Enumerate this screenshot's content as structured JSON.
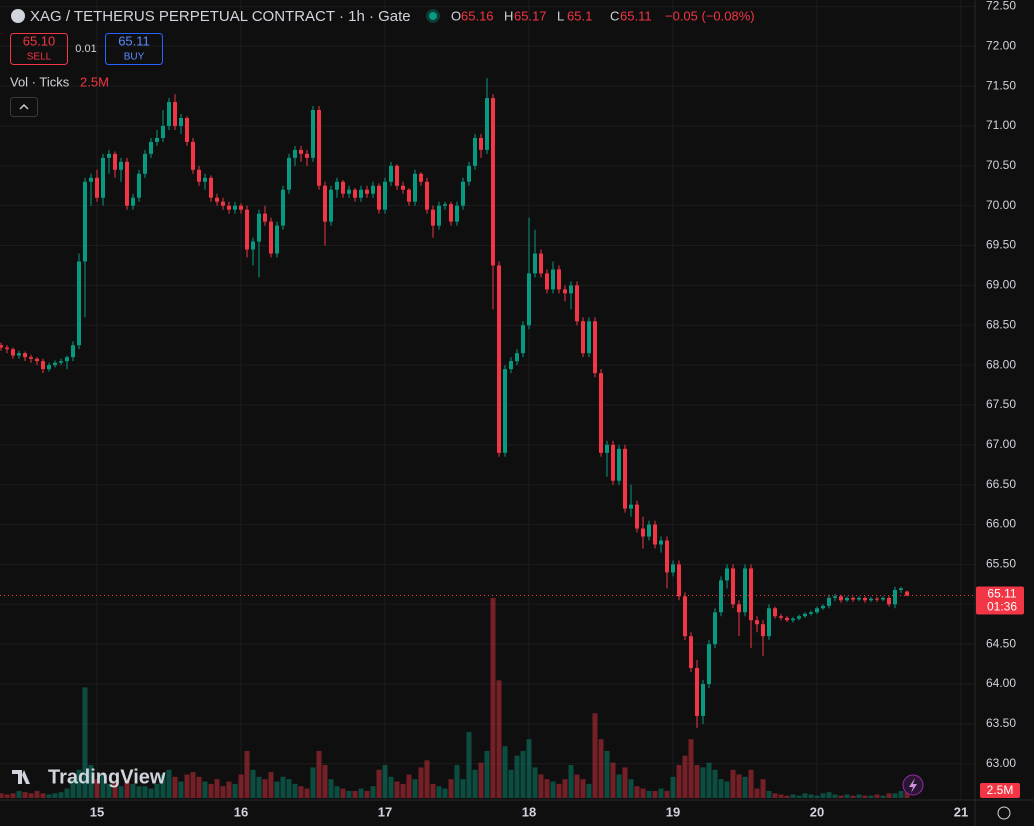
{
  "chart_data": {
    "type": "candlestick",
    "title": "XAG / TETHERUS PERPETUAL CONTRACT · 1h · Gate",
    "ohlc_keys": [
      "O",
      "H",
      "L",
      "C"
    ],
    "change_label": "−0.05 (−0.08%)",
    "sell_price": "65.10",
    "sell_label": "SELL",
    "spread": "0.01",
    "buy_price": "65.11",
    "buy_label": "BUY",
    "countdown": "01:36",
    "watermark": "TradingView",
    "up_color": "#089981",
    "down_color": "#f23645",
    "grid": true,
    "categories": [
      null,
      null,
      null,
      null,
      null,
      null,
      null,
      null,
      null,
      null,
      null,
      null,
      null,
      null,
      null,
      null,
      "15",
      null,
      null,
      null,
      null,
      null,
      null,
      null,
      null,
      null,
      null,
      null,
      null,
      null,
      null,
      null,
      null,
      null,
      null,
      null,
      null,
      null,
      null,
      null,
      "16",
      null,
      null,
      null,
      null,
      null,
      null,
      null,
      null,
      null,
      null,
      null,
      null,
      null,
      null,
      null,
      null,
      null,
      null,
      null,
      null,
      null,
      null,
      null,
      "17",
      null,
      null,
      null,
      null,
      null,
      null,
      null,
      null,
      null,
      null,
      null,
      null,
      null,
      null,
      null,
      null,
      null,
      null,
      null,
      null,
      null,
      null,
      null,
      "18",
      null,
      null,
      null,
      null,
      null,
      null,
      null,
      null,
      null,
      null,
      null,
      null,
      null,
      null,
      null,
      null,
      null,
      null,
      null,
      null,
      null,
      null,
      null,
      "19",
      null,
      null,
      null,
      null,
      null,
      null,
      null,
      null,
      null,
      null,
      null,
      null,
      null,
      null,
      null,
      null,
      null,
      null,
      null,
      null,
      null,
      null,
      null,
      "20",
      null,
      null,
      null,
      null,
      null,
      null,
      null,
      null,
      null,
      null,
      null,
      null,
      null,
      null,
      null,
      null,
      null,
      null,
      null,
      null,
      null,
      null,
      null,
      "21"
    ],
    "ohlc": [
      [
        68.25,
        68.28,
        68.18,
        68.22
      ],
      [
        68.22,
        68.25,
        68.15,
        68.2
      ],
      [
        68.2,
        68.22,
        68.08,
        68.12
      ],
      [
        68.12,
        68.18,
        68.08,
        68.15
      ],
      [
        68.15,
        68.17,
        68.05,
        68.1
      ],
      [
        68.1,
        68.13,
        68.03,
        68.08
      ],
      [
        68.08,
        68.1,
        68.0,
        68.05
      ],
      [
        68.05,
        68.08,
        67.9,
        67.95
      ],
      [
        67.95,
        68.03,
        67.92,
        68.0
      ],
      [
        68.0,
        68.06,
        67.97,
        68.03
      ],
      [
        68.03,
        68.08,
        68.0,
        68.05
      ],
      [
        68.05,
        68.12,
        67.95,
        68.1
      ],
      [
        68.1,
        68.3,
        68.05,
        68.25
      ],
      [
        68.25,
        69.4,
        68.2,
        69.3
      ],
      [
        69.3,
        70.35,
        68.6,
        70.3
      ],
      [
        70.3,
        70.4,
        70.0,
        70.35
      ],
      [
        70.35,
        70.45,
        70.05,
        70.1
      ],
      [
        70.1,
        70.65,
        70.0,
        70.6
      ],
      [
        70.6,
        70.7,
        70.4,
        70.65
      ],
      [
        70.65,
        70.68,
        70.35,
        70.45
      ],
      [
        70.45,
        70.6,
        70.3,
        70.55
      ],
      [
        70.55,
        70.6,
        69.95,
        70.0
      ],
      [
        70.0,
        70.15,
        69.95,
        70.1
      ],
      [
        70.1,
        70.45,
        70.05,
        70.4
      ],
      [
        70.4,
        70.7,
        70.35,
        70.65
      ],
      [
        70.65,
        70.85,
        70.6,
        70.8
      ],
      [
        70.8,
        70.95,
        70.75,
        70.85
      ],
      [
        70.85,
        71.2,
        70.8,
        71.0
      ],
      [
        71.0,
        71.35,
        70.95,
        71.3
      ],
      [
        71.3,
        71.4,
        70.95,
        71.0
      ],
      [
        71.0,
        71.15,
        70.9,
        71.1
      ],
      [
        71.1,
        71.12,
        70.75,
        70.8
      ],
      [
        70.8,
        70.85,
        70.4,
        70.45
      ],
      [
        70.45,
        70.5,
        70.25,
        70.3
      ],
      [
        70.3,
        70.4,
        70.2,
        70.35
      ],
      [
        70.35,
        70.38,
        70.05,
        70.1
      ],
      [
        70.1,
        70.15,
        70.0,
        70.05
      ],
      [
        70.05,
        70.1,
        69.95,
        70.0
      ],
      [
        70.0,
        70.05,
        69.9,
        69.95
      ],
      [
        69.95,
        70.05,
        69.9,
        70.0
      ],
      [
        70.0,
        70.03,
        69.9,
        69.95
      ],
      [
        69.95,
        70.0,
        69.35,
        69.45
      ],
      [
        69.45,
        69.6,
        69.25,
        69.55
      ],
      [
        69.55,
        69.95,
        69.1,
        69.9
      ],
      [
        69.9,
        70.0,
        69.75,
        69.8
      ],
      [
        69.8,
        69.85,
        69.35,
        69.4
      ],
      [
        69.4,
        69.8,
        69.35,
        69.75
      ],
      [
        69.75,
        70.25,
        69.7,
        70.2
      ],
      [
        70.2,
        70.65,
        70.15,
        70.6
      ],
      [
        70.6,
        70.75,
        70.5,
        70.7
      ],
      [
        70.7,
        70.75,
        70.55,
        70.65
      ],
      [
        70.65,
        70.7,
        70.5,
        70.6
      ],
      [
        70.6,
        71.25,
        70.55,
        71.2
      ],
      [
        71.2,
        71.25,
        70.2,
        70.25
      ],
      [
        70.25,
        70.3,
        69.5,
        69.8
      ],
      [
        69.8,
        70.25,
        69.75,
        70.2
      ],
      [
        70.2,
        70.35,
        70.1,
        70.3
      ],
      [
        70.3,
        70.32,
        70.1,
        70.15
      ],
      [
        70.15,
        70.25,
        70.1,
        70.2
      ],
      [
        70.2,
        70.22,
        70.05,
        70.1
      ],
      [
        70.1,
        70.25,
        70.05,
        70.2
      ],
      [
        70.2,
        70.25,
        70.1,
        70.15
      ],
      [
        70.15,
        70.3,
        70.1,
        70.25
      ],
      [
        70.25,
        70.28,
        69.9,
        69.95
      ],
      [
        69.95,
        70.35,
        69.9,
        70.3
      ],
      [
        70.3,
        70.55,
        70.25,
        70.5
      ],
      [
        70.5,
        70.52,
        70.2,
        70.25
      ],
      [
        70.25,
        70.3,
        70.15,
        70.2
      ],
      [
        70.2,
        70.22,
        70.0,
        70.05
      ],
      [
        70.05,
        70.45,
        70.0,
        70.4
      ],
      [
        70.4,
        70.42,
        70.25,
        70.3
      ],
      [
        70.3,
        70.35,
        69.9,
        69.95
      ],
      [
        69.95,
        70.0,
        69.6,
        69.75
      ],
      [
        69.75,
        70.05,
        69.7,
        70.0
      ],
      [
        70.0,
        70.05,
        69.95,
        70.02
      ],
      [
        70.02,
        70.05,
        69.75,
        69.8
      ],
      [
        69.8,
        70.05,
        69.75,
        70.0
      ],
      [
        70.0,
        70.35,
        69.95,
        70.3
      ],
      [
        70.3,
        70.55,
        70.25,
        70.5
      ],
      [
        70.5,
        70.9,
        70.45,
        70.85
      ],
      [
        70.85,
        70.9,
        70.6,
        70.7
      ],
      [
        70.7,
        71.6,
        70.65,
        71.35
      ],
      [
        71.35,
        71.4,
        68.7,
        69.25
      ],
      [
        69.25,
        69.3,
        66.85,
        66.9
      ],
      [
        66.9,
        68.0,
        66.85,
        67.95
      ],
      [
        67.95,
        68.1,
        67.9,
        68.05
      ],
      [
        68.05,
        68.2,
        68.0,
        68.15
      ],
      [
        68.15,
        68.55,
        68.1,
        68.5
      ],
      [
        68.5,
        69.85,
        68.45,
        69.15
      ],
      [
        69.15,
        69.7,
        69.1,
        69.4
      ],
      [
        69.4,
        69.45,
        69.1,
        69.15
      ],
      [
        69.15,
        69.2,
        68.9,
        68.95
      ],
      [
        68.95,
        69.3,
        68.9,
        69.2
      ],
      [
        69.2,
        69.25,
        68.9,
        68.95
      ],
      [
        68.95,
        69.0,
        68.8,
        68.9
      ],
      [
        68.9,
        69.05,
        68.7,
        69.0
      ],
      [
        69.0,
        69.05,
        68.5,
        68.55
      ],
      [
        68.55,
        68.6,
        68.1,
        68.15
      ],
      [
        68.15,
        68.6,
        68.1,
        68.55
      ],
      [
        68.55,
        68.6,
        67.85,
        67.9
      ],
      [
        67.9,
        67.95,
        66.85,
        66.9
      ],
      [
        66.9,
        67.05,
        66.6,
        67.0
      ],
      [
        67.0,
        67.05,
        66.5,
        66.55
      ],
      [
        66.55,
        67.0,
        66.5,
        66.95
      ],
      [
        66.95,
        67.0,
        66.15,
        66.2
      ],
      [
        66.2,
        66.5,
        66.1,
        66.25
      ],
      [
        66.25,
        66.3,
        65.9,
        65.95
      ],
      [
        65.95,
        66.1,
        65.7,
        65.85
      ],
      [
        65.85,
        66.05,
        65.8,
        66.0
      ],
      [
        66.0,
        66.05,
        65.7,
        65.75
      ],
      [
        65.75,
        65.85,
        65.65,
        65.8
      ],
      [
        65.8,
        65.85,
        65.2,
        65.4
      ],
      [
        65.4,
        65.55,
        65.35,
        65.5
      ],
      [
        65.5,
        65.55,
        65.05,
        65.1
      ],
      [
        65.1,
        65.15,
        64.55,
        64.6
      ],
      [
        64.6,
        64.65,
        64.15,
        64.2
      ],
      [
        64.2,
        64.3,
        63.45,
        63.6
      ],
      [
        63.6,
        64.05,
        63.5,
        64.0
      ],
      [
        64.0,
        64.55,
        63.95,
        64.5
      ],
      [
        64.5,
        64.95,
        64.45,
        64.9
      ],
      [
        64.9,
        65.35,
        64.85,
        65.3
      ],
      [
        65.3,
        65.5,
        65.2,
        65.45
      ],
      [
        65.45,
        65.5,
        64.95,
        65.0
      ],
      [
        65.0,
        65.05,
        64.6,
        64.9
      ],
      [
        64.9,
        65.5,
        64.85,
        65.45
      ],
      [
        65.45,
        65.5,
        64.45,
        64.8
      ],
      [
        64.8,
        64.85,
        64.65,
        64.75
      ],
      [
        64.75,
        64.8,
        64.35,
        64.6
      ],
      [
        64.6,
        65.0,
        64.55,
        64.95
      ],
      [
        64.95,
        64.97,
        64.82,
        64.85
      ],
      [
        64.85,
        64.88,
        64.8,
        64.83
      ],
      [
        64.83,
        64.85,
        64.78,
        64.8
      ],
      [
        64.8,
        64.84,
        64.77,
        64.82
      ],
      [
        64.82,
        64.87,
        64.8,
        64.85
      ],
      [
        64.85,
        64.9,
        64.83,
        64.88
      ],
      [
        64.88,
        64.92,
        64.86,
        64.9
      ],
      [
        64.9,
        64.97,
        64.88,
        64.95
      ],
      [
        64.95,
        65.0,
        64.93,
        64.98
      ],
      [
        64.98,
        65.12,
        64.95,
        65.08
      ],
      [
        65.08,
        65.13,
        65.04,
        65.1
      ],
      [
        65.1,
        65.12,
        65.02,
        65.05
      ],
      [
        65.05,
        65.1,
        65.03,
        65.08
      ],
      [
        65.08,
        65.1,
        65.03,
        65.06
      ],
      [
        65.06,
        65.1,
        65.04,
        65.08
      ],
      [
        65.08,
        65.1,
        65.02,
        65.05
      ],
      [
        65.05,
        65.09,
        65.03,
        65.07
      ],
      [
        65.07,
        65.09,
        65.03,
        65.06
      ],
      [
        65.06,
        65.1,
        65.04,
        65.08
      ],
      [
        65.08,
        65.1,
        64.97,
        65.0
      ],
      [
        65.0,
        65.22,
        64.95,
        65.18
      ],
      [
        65.18,
        65.22,
        65.14,
        65.2
      ],
      [
        65.16,
        65.17,
        65.1,
        65.11
      ],
      null,
      null,
      null,
      null,
      null,
      null,
      null,
      null,
      null
    ],
    "volume": {
      "name": "Vol · Ticks",
      "last_label": "2.5M",
      "vlim": [
        0,
        85
      ],
      "values": [
        2,
        1.5,
        2,
        3,
        2.5,
        2,
        3,
        2,
        1.5,
        2,
        2.5,
        4,
        8,
        12,
        47,
        14,
        8,
        10,
        6,
        7,
        5,
        8,
        6,
        5,
        5,
        4,
        6,
        10,
        12,
        9,
        7,
        10,
        11,
        9,
        7,
        6,
        8,
        5,
        7,
        6,
        10,
        20,
        12,
        9,
        8,
        11,
        7,
        9,
        8,
        6,
        5,
        4,
        13,
        20,
        14,
        8,
        5,
        4,
        3,
        3,
        4,
        3,
        5,
        12,
        14,
        9,
        7,
        6,
        10,
        8,
        13,
        16,
        6,
        5,
        4,
        8,
        14,
        8,
        28,
        12,
        15,
        20,
        85,
        50,
        22,
        12,
        18,
        20,
        25,
        13,
        10,
        8,
        7,
        6,
        8,
        14,
        10,
        8,
        6,
        36,
        25,
        20,
        15,
        10,
        13,
        8,
        5,
        4,
        3,
        3,
        4,
        3,
        9,
        14,
        18,
        25,
        14,
        13,
        15,
        12,
        8,
        7,
        12,
        10,
        9,
        12,
        4,
        8,
        3,
        2,
        1.5,
        1,
        1.5,
        1,
        2,
        1.5,
        1,
        2,
        2.5,
        1.5,
        1,
        1.5,
        1,
        1.5,
        1,
        1,
        1.5,
        1,
        2,
        2,
        3,
        2.5,
        null,
        null,
        null,
        null,
        null,
        null,
        null,
        null,
        null
      ]
    },
    "ylim": [
      62.52,
      72.58
    ],
    "yticks": [
      {
        "value": 63,
        "label": "63.00"
      },
      {
        "value": 63.5,
        "label": "63.50"
      },
      {
        "value": 64,
        "label": "64.00"
      },
      {
        "value": 64.5,
        "label": "64.50"
      },
      {
        "value": 65,
        "label": "65.00"
      },
      {
        "value": 65.5,
        "label": "65.50"
      },
      {
        "value": 66,
        "label": "66.00"
      },
      {
        "value": 66.5,
        "label": "66.50"
      },
      {
        "value": 67,
        "label": "67.00"
      },
      {
        "value": 67.5,
        "label": "67.50"
      },
      {
        "value": 68,
        "label": "68.00"
      },
      {
        "value": 68.5,
        "label": "68.50"
      },
      {
        "value": 69,
        "label": "69.00"
      },
      {
        "value": 69.5,
        "label": "69.50"
      },
      {
        "value": 70,
        "label": "70.00"
      },
      {
        "value": 70.5,
        "label": "70.50"
      },
      {
        "value": 71,
        "label": "71.00"
      },
      {
        "value": 71.5,
        "label": "71.50"
      },
      {
        "value": 72,
        "label": "72.00"
      },
      {
        "value": 72.5,
        "label": "72.50"
      }
    ]
  }
}
